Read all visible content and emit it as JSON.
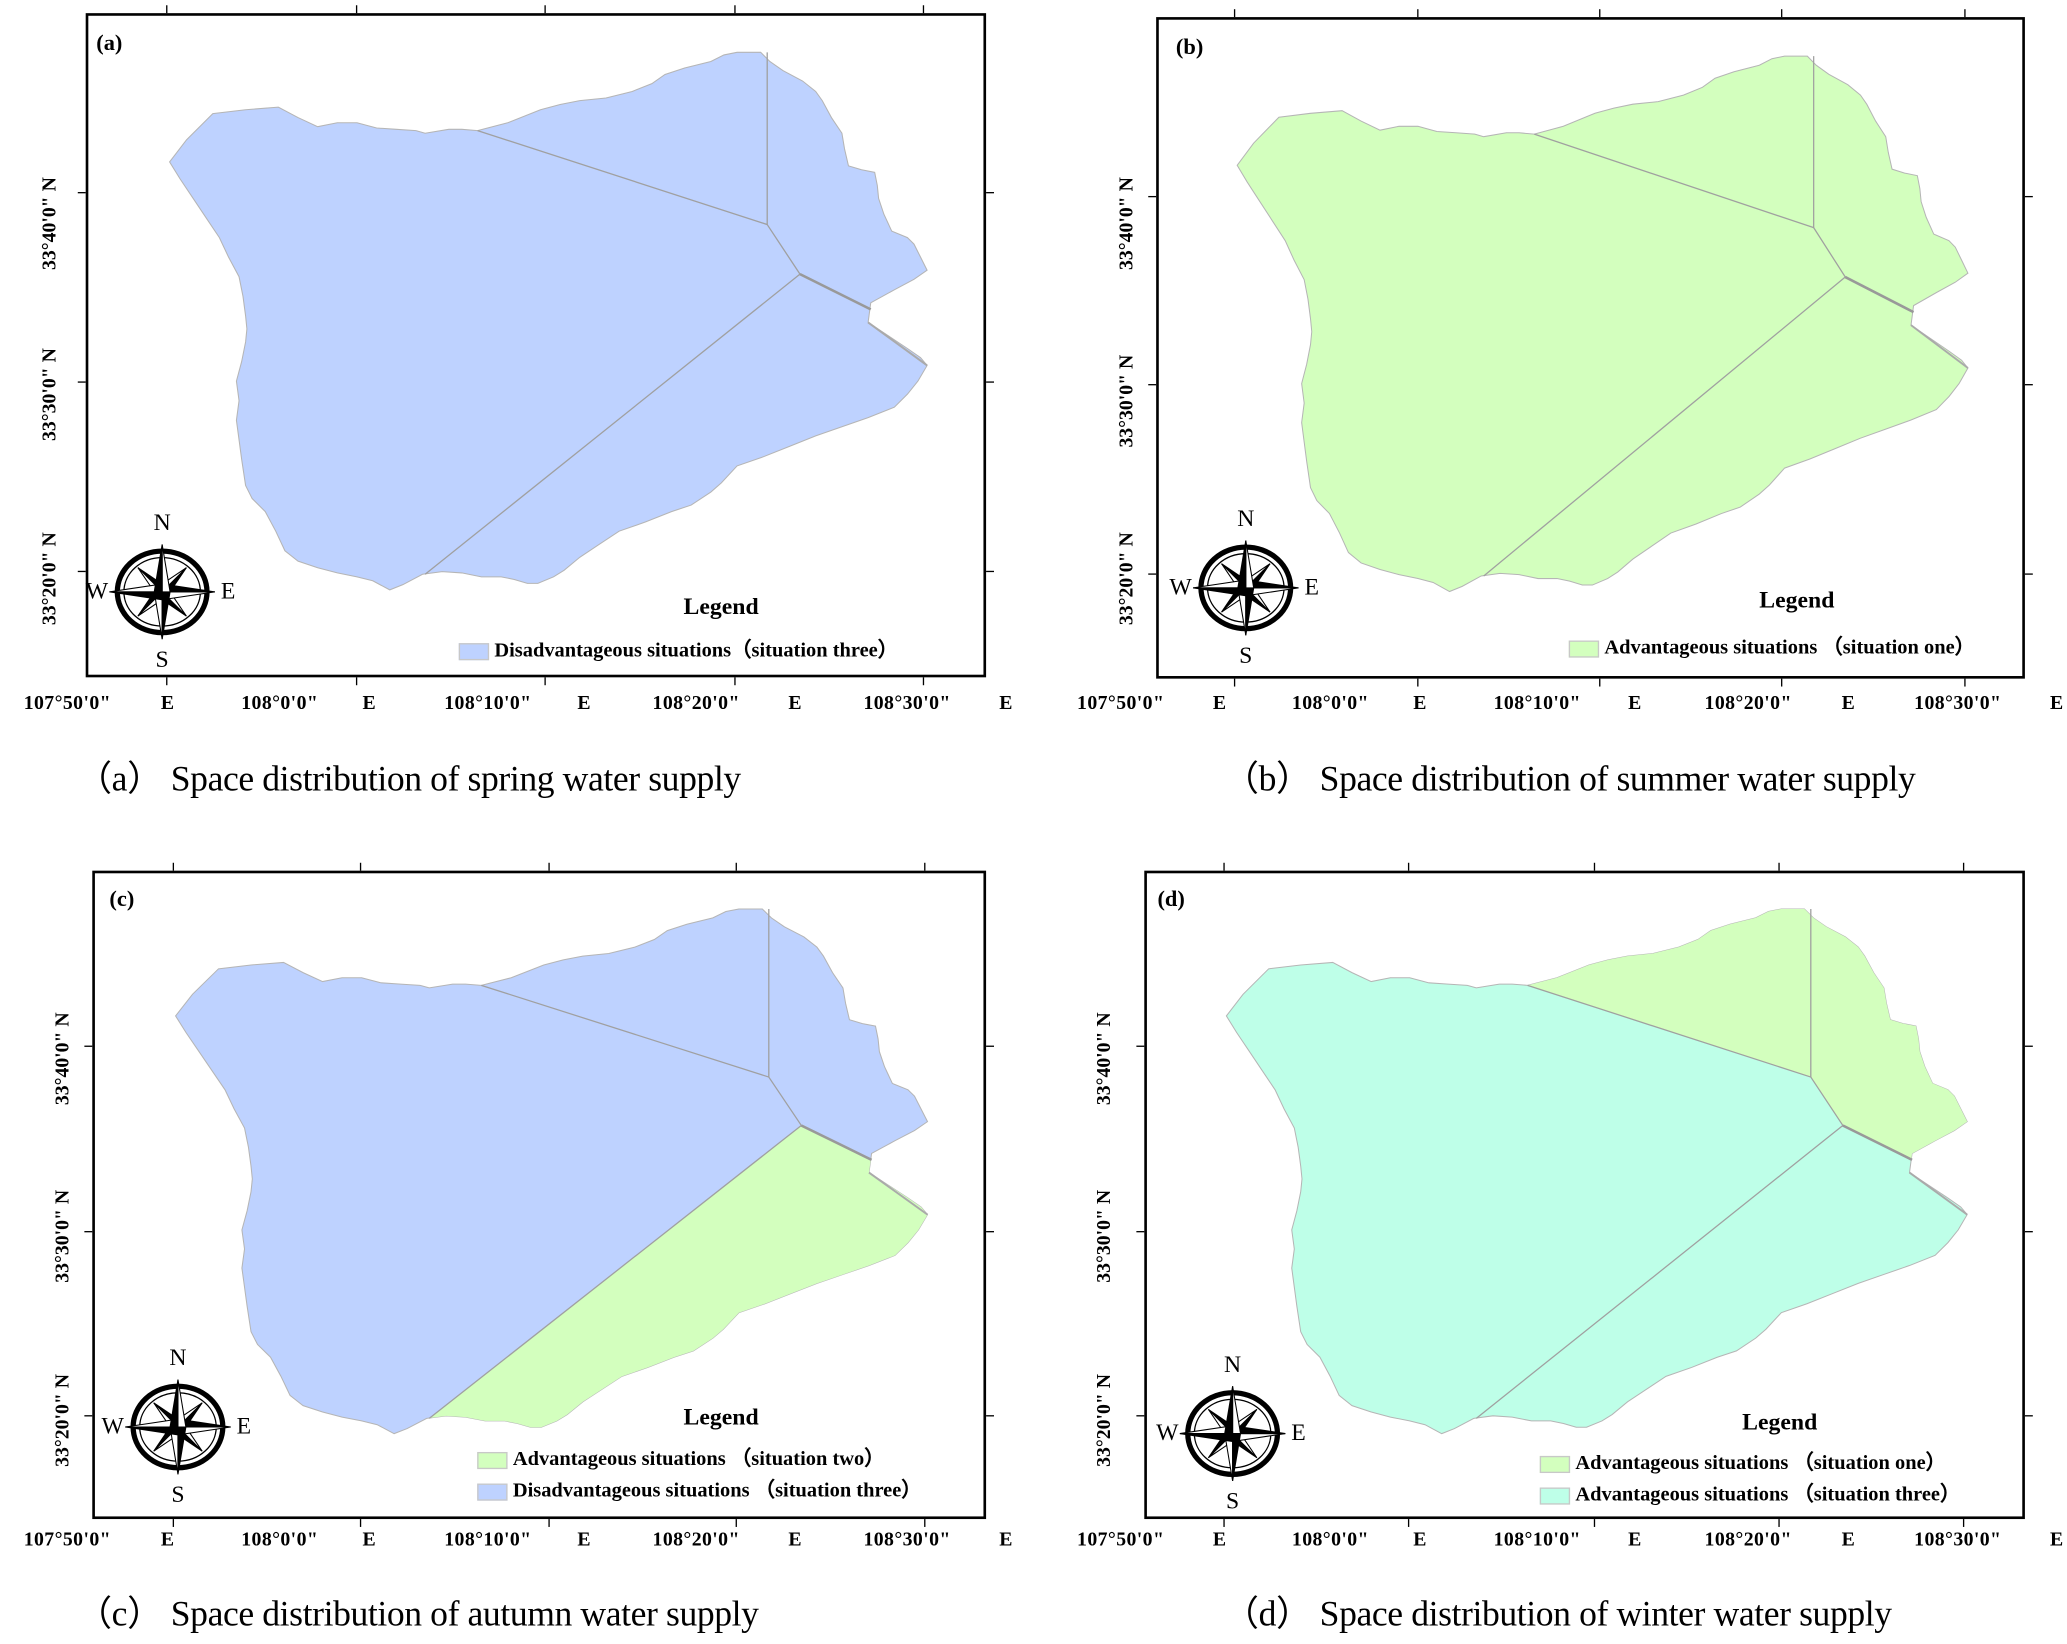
{
  "colors": {
    "disadvantage_three": "#BED2FF",
    "advantage_one": "#D3FFBE",
    "advantage_two": "#D3FFBE",
    "advantage_three": "#BEFFE8",
    "boundary": "#a0a0a0"
  },
  "axes": {
    "x_labels": [
      "107°50'0\"",
      "108°0'0\"",
      "108°10'0\"",
      "108°20'0\"",
      "108°30'0\""
    ],
    "x_suffix": "E",
    "y_labels": [
      "33°40'0\" N",
      "33°30'0\" N",
      "33°20'0\" N"
    ]
  },
  "compass": {
    "n": "N",
    "s": "S",
    "e": "E",
    "w": "W"
  },
  "panels": [
    {
      "label": "(a)",
      "caption": "（a） Space distribution of spring water supply",
      "legend_title": "Legend",
      "legend_items": [
        {
          "label": "Disadvantageous situations（situation three）",
          "color": "#BED2FF"
        }
      ],
      "base_fill": "#BED2FF",
      "overlay": null,
      "overlay_fill": null
    },
    {
      "label": "(b)",
      "caption": "（b） Space distribution of summer water supply",
      "legend_title": "Legend",
      "legend_items": [
        {
          "label": "Advantageous situations （situation one）",
          "color": "#D3FFBE"
        }
      ],
      "base_fill": "#D3FFBE",
      "overlay": null,
      "overlay_fill": null
    },
    {
      "label": "(c)",
      "caption": "（c） Space distribution of autumn water supply",
      "legend_title": "Legend",
      "legend_items": [
        {
          "label": "Advantageous situations （situation two）",
          "color": "#D3FFBE"
        },
        {
          "label": "Disadvantageous situations （situation three）",
          "color": "#BED2FF"
        }
      ],
      "base_fill": "#BED2FF",
      "overlay": "south-east",
      "overlay_fill": "#D3FFBE"
    },
    {
      "label": "(d)",
      "caption": "（d） Space distribution of winter water supply",
      "legend_title": "Legend",
      "legend_items": [
        {
          "label": "Advantageous situations （situation one）",
          "color": "#D3FFBE"
        },
        {
          "label": "Advantageous situations （situation three）",
          "color": "#BEFFE8"
        }
      ],
      "base_fill": "#BEFFE8",
      "overlay": "north-east",
      "overlay_fill": "#D3FFBE"
    }
  ]
}
